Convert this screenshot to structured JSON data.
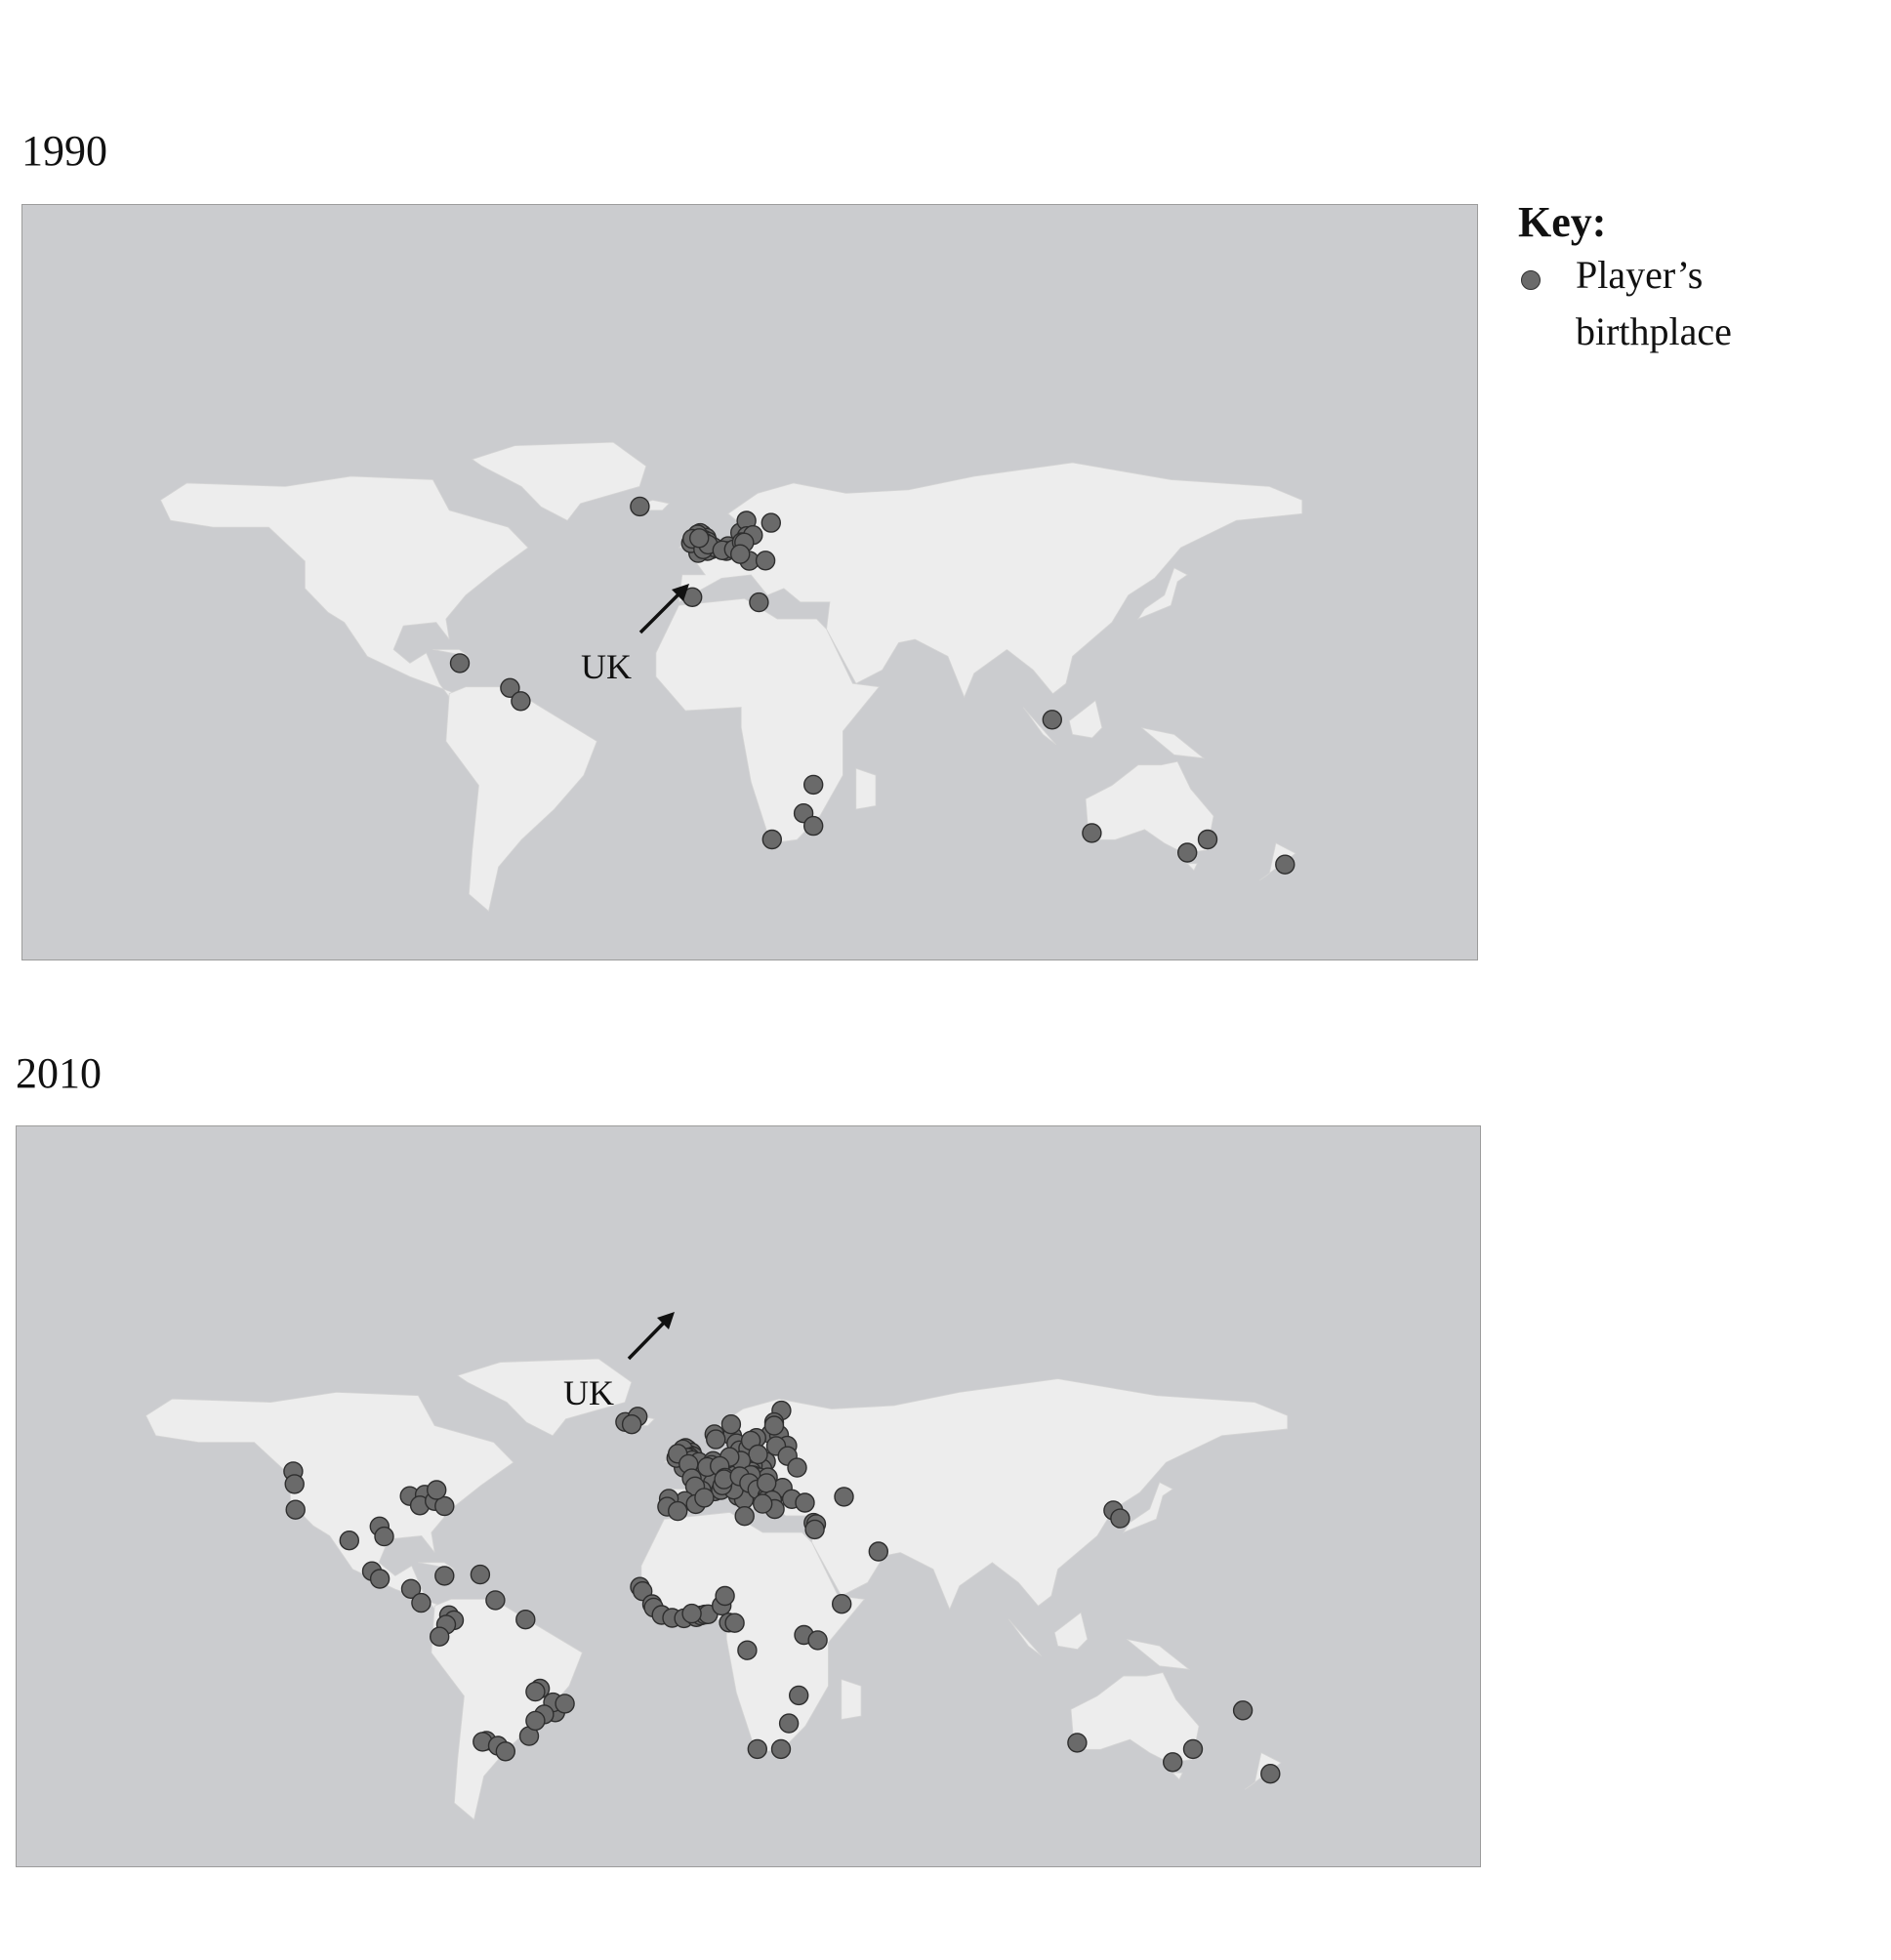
{
  "maps": [
    {
      "year": "1990",
      "arrow_label": "UK",
      "points_lonlat": [
        [
          -21.9,
          64.1
        ],
        [
          -2.8,
          55.8
        ],
        [
          -3.5,
          56.3
        ],
        [
          -1.6,
          54.9
        ],
        [
          -2.4,
          54.3
        ],
        [
          -4.3,
          55.9
        ],
        [
          -1.2,
          53.8
        ],
        [
          -2.2,
          53.5
        ],
        [
          -3.0,
          53.4
        ],
        [
          -1.5,
          52.6
        ],
        [
          -1.9,
          52.5
        ],
        [
          -0.1,
          51.5
        ],
        [
          -1.3,
          51.0
        ],
        [
          -3.2,
          51.5
        ],
        [
          -4.1,
          50.4
        ],
        [
          -6.3,
          53.3
        ],
        [
          -5.9,
          54.6
        ],
        [
          0.6,
          52.1
        ],
        [
          -2.6,
          51.5
        ],
        [
          -1.1,
          52.9
        ],
        [
          -3.8,
          54.8
        ],
        [
          5.0,
          52.4
        ],
        [
          4.5,
          51.0
        ],
        [
          3.2,
          51.2
        ],
        [
          8.7,
          56.4
        ],
        [
          10.6,
          59.9
        ],
        [
          10.7,
          55.4
        ],
        [
          12.6,
          55.7
        ],
        [
          18.1,
          59.3
        ],
        [
          6.8,
          51.5
        ],
        [
          11.5,
          48.1
        ],
        [
          9.2,
          53.6
        ],
        [
          16.4,
          48.2
        ],
        [
          9.9,
          53.5
        ],
        [
          8.7,
          50.1
        ],
        [
          -5.9,
          37.4
        ],
        [
          14.4,
          35.9
        ],
        [
          -76.8,
          18.0
        ],
        [
          -61.5,
          10.7
        ],
        [
          -58.2,
          6.8
        ],
        [
          103.8,
          1.35
        ],
        [
          31.0,
          -17.8
        ],
        [
          28.0,
          -26.2
        ],
        [
          31.0,
          -29.9
        ],
        [
          18.4,
          -33.9
        ],
        [
          115.9,
          -32.0
        ],
        [
          145.0,
          -37.8
        ],
        [
          151.2,
          -33.9
        ],
        [
          174.8,
          -41.3
        ]
      ]
    },
    {
      "year": "2010",
      "arrow_label": "UK",
      "points_lonlat": [
        [
          -21.9,
          64.1
        ],
        [
          -18.1,
          65.7
        ],
        [
          -19.9,
          63.4
        ],
        [
          25.7,
          67.5
        ],
        [
          23.5,
          64.0
        ],
        [
          22.5,
          60.5
        ],
        [
          25.0,
          60.2
        ],
        [
          27.5,
          57.0
        ],
        [
          24.1,
          56.9
        ],
        [
          27.6,
          53.9
        ],
        [
          23.5,
          63.0
        ],
        [
          10.7,
          59.9
        ],
        [
          10.4,
          63.4
        ],
        [
          5.3,
          60.4
        ],
        [
          5.7,
          58.9
        ],
        [
          18.1,
          59.3
        ],
        [
          12.0,
          57.7
        ],
        [
          13.0,
          55.6
        ],
        [
          15.6,
          56.2
        ],
        [
          16.4,
          58.5
        ],
        [
          21.0,
          52.2
        ],
        [
          19.9,
          50.1
        ],
        [
          17.0,
          51.1
        ],
        [
          18.6,
          54.4
        ],
        [
          14.4,
          50.1
        ],
        [
          16.6,
          49.2
        ],
        [
          17.1,
          48.1
        ],
        [
          19.0,
          47.5
        ],
        [
          21.6,
          47.5
        ],
        [
          -2.8,
          55.8
        ],
        [
          -3.5,
          56.3
        ],
        [
          -1.6,
          54.9
        ],
        [
          -2.4,
          54.3
        ],
        [
          -4.3,
          55.9
        ],
        [
          -1.2,
          53.8
        ],
        [
          -2.2,
          53.5
        ],
        [
          -3.0,
          53.4
        ],
        [
          -1.5,
          52.6
        ],
        [
          -0.1,
          51.5
        ],
        [
          -3.2,
          51.5
        ],
        [
          -4.1,
          50.4
        ],
        [
          -6.3,
          53.3
        ],
        [
          -5.9,
          54.6
        ],
        [
          0.6,
          52.1
        ],
        [
          -2.6,
          51.5
        ],
        [
          4.9,
          52.4
        ],
        [
          4.4,
          51.2
        ],
        [
          2.4,
          48.9
        ],
        [
          -1.6,
          47.2
        ],
        [
          5.4,
          43.3
        ],
        [
          4.8,
          45.8
        ],
        [
          1.4,
          43.6
        ],
        [
          7.3,
          43.7
        ],
        [
          3.1,
          50.6
        ],
        [
          -0.6,
          44.8
        ],
        [
          8.7,
          50.1
        ],
        [
          11.6,
          48.1
        ],
        [
          13.4,
          52.5
        ],
        [
          9.9,
          53.6
        ],
        [
          6.9,
          50.9
        ],
        [
          9.2,
          45.5
        ],
        [
          12.5,
          41.9
        ],
        [
          14.3,
          40.9
        ],
        [
          11.2,
          43.8
        ],
        [
          7.7,
          45.1
        ],
        [
          8.5,
          47.4
        ],
        [
          8.2,
          46.9
        ],
        [
          16.4,
          48.2
        ],
        [
          13.0,
          47.8
        ],
        [
          15.9,
          45.8
        ],
        [
          20.5,
          44.8
        ],
        [
          18.4,
          43.9
        ],
        [
          23.3,
          42.7
        ],
        [
          21.4,
          41.9
        ],
        [
          21.0,
          40.6
        ],
        [
          26.1,
          44.4
        ],
        [
          21.2,
          45.8
        ],
        [
          22.9,
          40.6
        ],
        [
          23.7,
          38.0
        ],
        [
          20.0,
          39.6
        ],
        [
          -3.7,
          40.4
        ],
        [
          -8.6,
          41.1
        ],
        [
          -9.1,
          38.7
        ],
        [
          -5.9,
          37.4
        ],
        [
          -0.4,
          39.5
        ],
        [
          2.2,
          41.4
        ],
        [
          14.5,
          35.9
        ],
        [
          30.5,
          50.4
        ],
        [
          28.9,
          41.0
        ],
        [
          32.9,
          39.9
        ],
        [
          44.8,
          41.7
        ],
        [
          35.5,
          33.9
        ],
        [
          36.3,
          33.5
        ],
        [
          35.9,
          31.9
        ],
        [
          55.3,
          25.3
        ],
        [
          126.9,
          37.6
        ],
        [
          129.0,
          35.2
        ],
        [
          -123.1,
          49.3
        ],
        [
          -122.7,
          45.5
        ],
        [
          -122.4,
          37.8
        ],
        [
          -87.6,
          41.9
        ],
        [
          -83.0,
          42.3
        ],
        [
          -84.5,
          39.1
        ],
        [
          -80.0,
          40.4
        ],
        [
          -77.0,
          38.9
        ],
        [
          -79.4,
          43.7
        ],
        [
          -96.8,
          32.8
        ],
        [
          -95.4,
          29.8
        ],
        [
          -106.0,
          28.6
        ],
        [
          -99.1,
          19.4
        ],
        [
          -96.7,
          17.1
        ],
        [
          -87.2,
          14.1
        ],
        [
          -84.1,
          9.9
        ],
        [
          -77.0,
          18.0
        ],
        [
          -61.5,
          10.7
        ],
        [
          -66.1,
          18.4
        ],
        [
          -52.3,
          4.9
        ],
        [
          -75.6,
          6.2
        ],
        [
          -74.1,
          4.7
        ],
        [
          -76.5,
          3.4
        ],
        [
          -78.5,
          -0.2
        ],
        [
          -47.9,
          -15.8
        ],
        [
          -49.3,
          -16.7
        ],
        [
          -43.2,
          -22.9
        ],
        [
          -43.9,
          -19.9
        ],
        [
          -46.6,
          -23.5
        ],
        [
          -51.2,
          -30.0
        ],
        [
          -40.3,
          -20.3
        ],
        [
          -49.3,
          -25.4
        ],
        [
          -64.2,
          -31.4
        ],
        [
          -65.4,
          -31.7
        ],
        [
          -60.7,
          -32.9
        ],
        [
          -58.4,
          -34.6
        ],
        [
          -17.4,
          14.7
        ],
        [
          -16.6,
          13.4
        ],
        [
          -13.7,
          9.5
        ],
        [
          -13.2,
          8.5
        ],
        [
          -10.8,
          6.3
        ],
        [
          -7.6,
          5.4
        ],
        [
          -4.0,
          5.3
        ],
        [
          -0.2,
          5.6
        ],
        [
          1.2,
          6.1
        ],
        [
          2.4,
          6.4
        ],
        [
          3.4,
          6.5
        ],
        [
          -1.6,
          6.7
        ],
        [
          7.5,
          9.1
        ],
        [
          8.5,
          12.0
        ],
        [
          9.7,
          4.0
        ],
        [
          11.5,
          3.9
        ],
        [
          15.3,
          -4.3
        ],
        [
          32.6,
          0.3
        ],
        [
          36.8,
          -1.3
        ],
        [
          44.1,
          9.6
        ],
        [
          31.0,
          -17.8
        ],
        [
          28.0,
          -26.2
        ],
        [
          18.4,
          -33.9
        ],
        [
          25.6,
          -33.9
        ],
        [
          115.9,
          -32.0
        ],
        [
          145.0,
          -37.8
        ],
        [
          151.2,
          -33.9
        ],
        [
          166.4,
          -22.3
        ],
        [
          174.8,
          -41.3
        ]
      ]
    }
  ],
  "key": {
    "title": "Key:",
    "label": "Player’s birthplace"
  }
}
